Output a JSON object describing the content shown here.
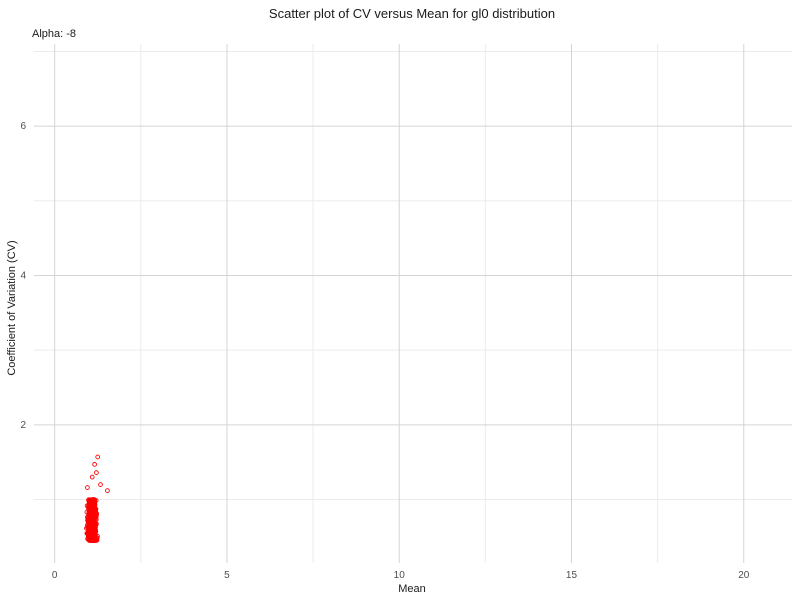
{
  "chart_data": {
    "type": "scatter",
    "title": "Scatter plot of CV versus Mean for gl0 distribution",
    "subtitle": "Alpha: -8",
    "xlabel": "Mean",
    "ylabel": "Coefficient of Variation (CV)",
    "xlim": [
      -0.6,
      21.4
    ],
    "ylim": [
      0.15,
      7.1
    ],
    "x_ticks": [
      0,
      5,
      10,
      15,
      20
    ],
    "x_minor_ticks": [
      2.5,
      7.5,
      12.5,
      17.5
    ],
    "y_ticks": [
      2,
      4,
      6
    ],
    "y_minor_ticks": [
      1,
      3,
      5,
      7
    ],
    "grid": true,
    "legend": "none",
    "point_color": "#ff0000",
    "series": [
      {
        "cluster": {
          "x_center": 1.08,
          "x_spread": 0.11,
          "y_min": 0.45,
          "y_max": 1.0,
          "count": 900
        },
        "outliers": [
          [
            1.25,
            1.57
          ],
          [
            1.16,
            1.47
          ],
          [
            1.21,
            1.36
          ],
          [
            1.09,
            1.3
          ],
          [
            1.53,
            1.12
          ],
          [
            1.33,
            1.2
          ],
          [
            0.95,
            1.16
          ]
        ]
      }
    ]
  }
}
